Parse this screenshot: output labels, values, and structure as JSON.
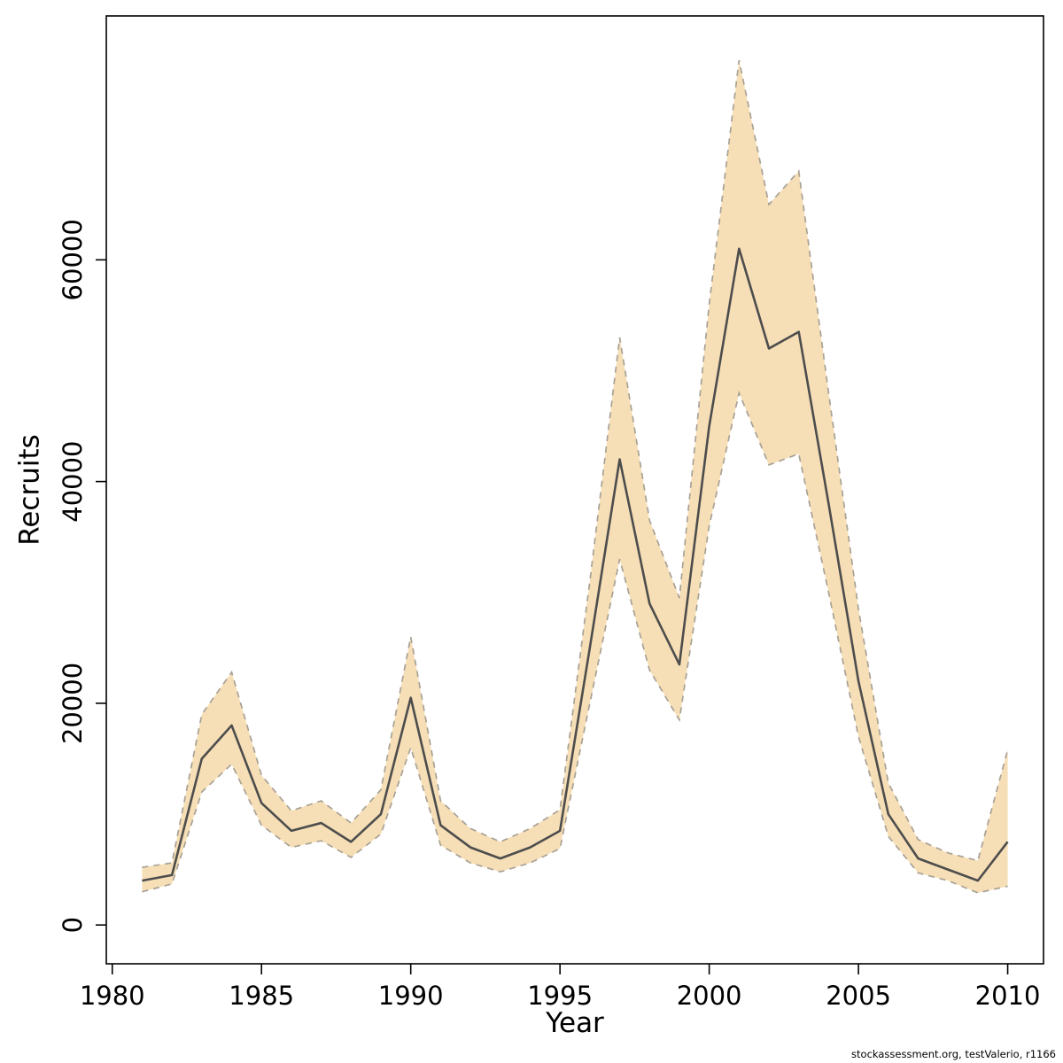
{
  "figure": {
    "xlabel": "Year",
    "ylabel": "Recruits"
  },
  "footer": {
    "credit": "stockassessment.org, testValerio, r1166"
  },
  "chart_data": {
    "type": "line",
    "title": "",
    "xlabel": "Year",
    "ylabel": "Recruits",
    "grid": false,
    "legend": "none",
    "x": [
      1981,
      1982,
      1983,
      1984,
      1985,
      1986,
      1987,
      1988,
      1989,
      1990,
      1991,
      1992,
      1993,
      1994,
      1995,
      1996,
      1997,
      1998,
      1999,
      2000,
      2001,
      2002,
      2003,
      2004,
      2005,
      2006,
      2007,
      2008,
      2009,
      2010
    ],
    "series": [
      {
        "name": "estimate",
        "role": "median",
        "values": [
          4000,
          4500,
          15000,
          18000,
          11000,
          8500,
          9200,
          7500,
          10000,
          20500,
          9000,
          7000,
          6000,
          7000,
          8500,
          25000,
          42000,
          29000,
          23500,
          45000,
          61000,
          52000,
          53500,
          38000,
          22000,
          10000,
          6000,
          5000,
          4000,
          7500
        ]
      },
      {
        "name": "ci-lower",
        "role": "lower",
        "values": [
          3000,
          3700,
          12000,
          14500,
          9000,
          7000,
          7600,
          6100,
          8200,
          16000,
          7200,
          5600,
          4800,
          5600,
          6900,
          20000,
          33000,
          23000,
          18500,
          36000,
          48000,
          41500,
          42500,
          30000,
          17000,
          8000,
          4700,
          4000,
          2900,
          3500
        ]
      },
      {
        "name": "ci-upper",
        "role": "upper",
        "values": [
          5200,
          5600,
          19000,
          22800,
          13500,
          10300,
          11200,
          9200,
          12200,
          26000,
          11200,
          8700,
          7500,
          8700,
          10400,
          31000,
          53000,
          36500,
          29500,
          56000,
          78000,
          65000,
          68000,
          48000,
          28500,
          12800,
          7700,
          6500,
          5800,
          15800
        ]
      }
    ],
    "xlim": [
      1979.8,
      2011.2
    ],
    "ylim": [
      -3500,
      82000
    ],
    "xticks": [
      1980,
      1985,
      1990,
      1995,
      2000,
      2005,
      2010
    ],
    "yticks": [
      0,
      20000,
      40000,
      60000
    ],
    "colors": {
      "band_fill": "#f6dfb6",
      "band_edge": "#a9a195",
      "line": "#4d4d4d",
      "axis": "#000000",
      "background": "#ffffff"
    }
  }
}
